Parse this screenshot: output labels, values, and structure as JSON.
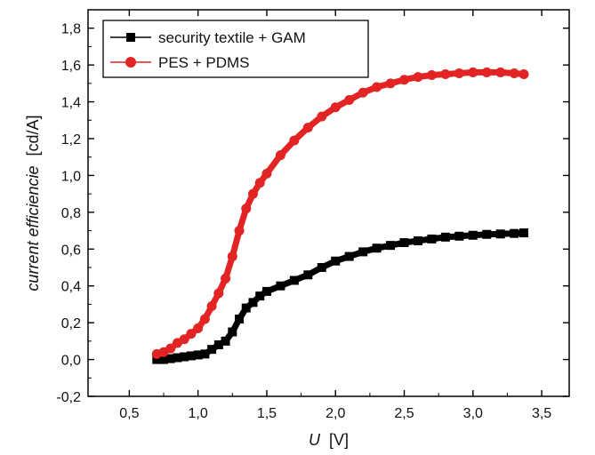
{
  "chart_data": {
    "type": "scatter",
    "xlabel": {
      "symbol": "U",
      "unit": "[V]"
    },
    "ylabel": {
      "text": "current efficiencie",
      "unit": "[cd/A]"
    },
    "xlim": [
      0.2,
      3.7
    ],
    "ylim": [
      -0.2,
      1.9
    ],
    "x_ticks": [
      0.5,
      1.0,
      1.5,
      2.0,
      2.5,
      3.0,
      3.5
    ],
    "x_tick_labels": [
      "0,5",
      "1,0",
      "1,5",
      "2,0",
      "2,5",
      "3,0",
      "3,5"
    ],
    "y_ticks": [
      -0.2,
      0.0,
      0.2,
      0.4,
      0.6,
      0.8,
      1.0,
      1.2,
      1.4,
      1.6,
      1.8
    ],
    "y_tick_labels": [
      "-0,2",
      "0,0",
      "0,2",
      "0,4",
      "0,6",
      "0,8",
      "1,0",
      "1,2",
      "1,4",
      "1,6",
      "1,8"
    ],
    "grid": false,
    "legend_position": "top-left",
    "series": [
      {
        "name": "security textile + GAM",
        "color": "#000000",
        "marker": "square",
        "x": [
          0.7,
          0.75,
          0.8,
          0.85,
          0.9,
          0.95,
          1.0,
          1.05,
          1.1,
          1.15,
          1.2,
          1.25,
          1.3,
          1.35,
          1.4,
          1.45,
          1.5,
          1.6,
          1.7,
          1.8,
          1.9,
          2.0,
          2.1,
          2.2,
          2.3,
          2.4,
          2.5,
          2.6,
          2.7,
          2.8,
          2.9,
          3.0,
          3.1,
          3.2,
          3.3,
          3.37
        ],
        "y": [
          0.0,
          0.0,
          0.005,
          0.01,
          0.015,
          0.02,
          0.025,
          0.03,
          0.055,
          0.08,
          0.1,
          0.15,
          0.22,
          0.28,
          0.31,
          0.345,
          0.37,
          0.4,
          0.43,
          0.46,
          0.5,
          0.535,
          0.56,
          0.585,
          0.605,
          0.62,
          0.635,
          0.645,
          0.655,
          0.665,
          0.67,
          0.675,
          0.68,
          0.682,
          0.685,
          0.688
        ]
      },
      {
        "name": "PES + PDMS",
        "color": "#e32424",
        "marker": "circle",
        "x": [
          0.7,
          0.75,
          0.8,
          0.85,
          0.9,
          0.95,
          1.0,
          1.05,
          1.1,
          1.15,
          1.2,
          1.25,
          1.3,
          1.35,
          1.4,
          1.45,
          1.5,
          1.6,
          1.7,
          1.8,
          1.9,
          2.0,
          2.1,
          2.2,
          2.3,
          2.4,
          2.5,
          2.6,
          2.7,
          2.8,
          2.9,
          3.0,
          3.1,
          3.2,
          3.3,
          3.37
        ],
        "y": [
          0.03,
          0.04,
          0.06,
          0.09,
          0.11,
          0.14,
          0.17,
          0.22,
          0.29,
          0.36,
          0.44,
          0.56,
          0.7,
          0.82,
          0.9,
          0.96,
          1.01,
          1.11,
          1.19,
          1.26,
          1.32,
          1.37,
          1.41,
          1.45,
          1.48,
          1.5,
          1.52,
          1.535,
          1.545,
          1.55,
          1.555,
          1.56,
          1.56,
          1.56,
          1.555,
          1.55
        ]
      }
    ]
  }
}
